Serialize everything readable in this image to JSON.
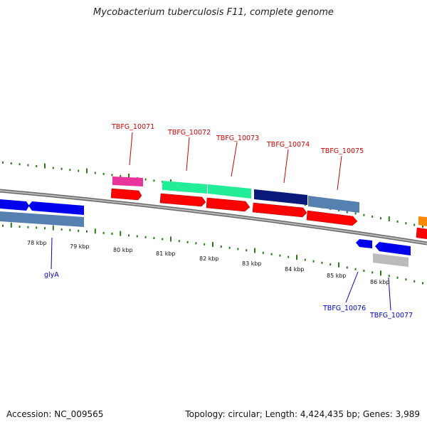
{
  "title": "Mycobacterium tuberculosis F11, complete genome",
  "footer": {
    "accession": "Accession: NC_009565",
    "summary": "Topology: circular; Length: 4,424,435 bp; Genes: 3,989"
  },
  "colors": {
    "backbone": "#8c8c8c",
    "tick_minor": "#2a7a1a",
    "label_forward": "#cc0000",
    "label_reverse": "#0000cc",
    "cds": "#ff0000"
  },
  "scale_labels": [
    "78 kbp",
    "79 kbp",
    "80 kbp",
    "81 kbp",
    "82 kbp",
    "83 kbp",
    "84 kbp",
    "85 kbp",
    "86 kbp"
  ],
  "genes_forward": [
    {
      "label": "TBFG_10071",
      "color": "#e8339a"
    },
    {
      "label": "TBFG_10072",
      "color": "#22ee99"
    },
    {
      "label": "TBFG_10073",
      "color": "#22ee99"
    },
    {
      "label": "TBFG_10074",
      "color": "#0a1a7a"
    },
    {
      "label": "TBFG_10075",
      "color": "#5580b0"
    }
  ],
  "genes_reverse": [
    {
      "label": "glyA",
      "color": "#0000ee"
    },
    {
      "label": "TBFG_10076",
      "color": "#0000ee"
    },
    {
      "label": "TBFG_10077",
      "color": "#0000ee"
    }
  ]
}
